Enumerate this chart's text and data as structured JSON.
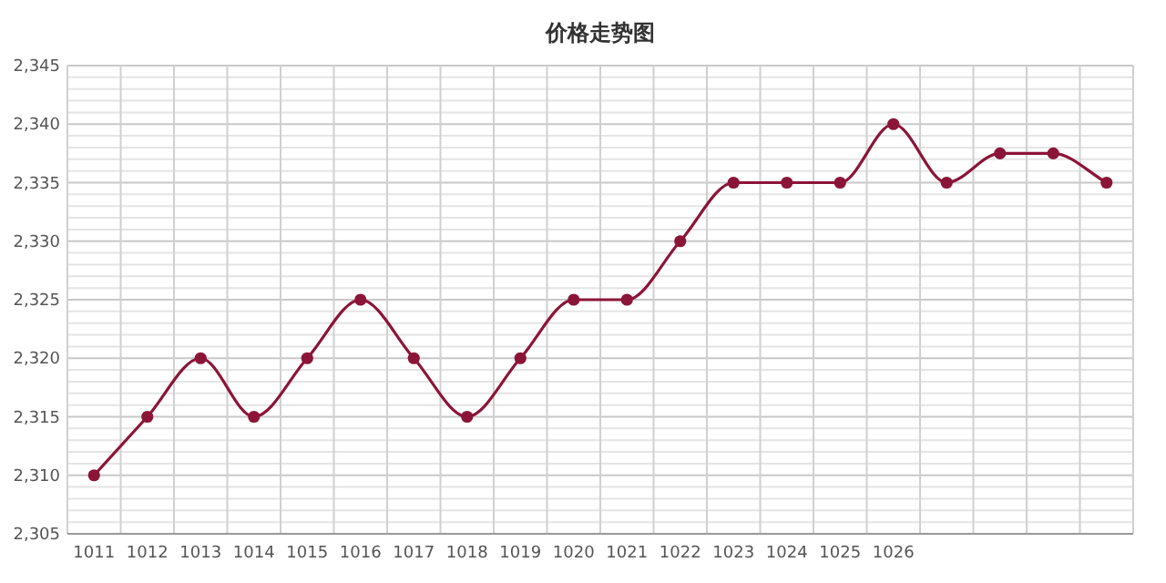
{
  "chart_data": {
    "type": "line",
    "title": "价格走势图",
    "categories": [
      "1011",
      "1012",
      "1013",
      "1014",
      "1015",
      "1016",
      "1017",
      "1018",
      "1019",
      "1020",
      "1021",
      "1022",
      "1023",
      "1024",
      "1025",
      "1026",
      null,
      null,
      null,
      null
    ],
    "series": [
      {
        "color": "#8b1538",
        "values": [
          2310,
          2315,
          2320,
          2315,
          2320,
          2325,
          2320,
          2315,
          2320,
          2325,
          2325,
          2330,
          2335,
          2335,
          2335,
          2340,
          2335,
          2337.5,
          2337.5,
          2335
        ]
      }
    ],
    "ylim": [
      2305,
      2345
    ],
    "yticks": [
      {
        "value": 2305,
        "label": "2,305"
      },
      {
        "value": 2310,
        "label": "2,310"
      },
      {
        "value": 2315,
        "label": "2,315"
      },
      {
        "value": 2320,
        "label": "2,320"
      },
      {
        "value": 2325,
        "label": "2,325"
      },
      {
        "value": 2330,
        "label": "2,330"
      },
      {
        "value": 2335,
        "label": "2,335"
      },
      {
        "value": 2340,
        "label": "2,340"
      },
      {
        "value": 2345,
        "label": "2,345"
      }
    ],
    "grid": true,
    "marker": "circle",
    "line_style": "solid"
  }
}
